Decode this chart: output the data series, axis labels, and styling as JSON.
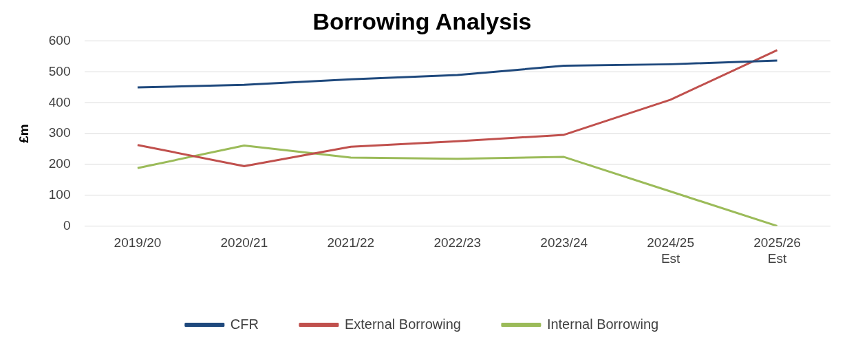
{
  "chart_data": {
    "type": "line",
    "title": "Borrowing Analysis",
    "ylabel": "£m",
    "categories": [
      "2019/20",
      "2020/21",
      "2021/22",
      "2022/23",
      "2023/24",
      "2024/25\nEst",
      "2025/26\nEst"
    ],
    "series": [
      {
        "name": "CFR",
        "color": "#1f497d",
        "values": [
          450,
          458,
          476,
          490,
          520,
          525,
          537
        ]
      },
      {
        "name": "External Borrowing",
        "color": "#c0504d",
        "values": [
          263,
          194,
          257,
          275,
          296,
          410,
          571
        ]
      },
      {
        "name": "Internal Borrowing",
        "color": "#9bbb59",
        "values": [
          188,
          261,
          222,
          218,
          224,
          112,
          0
        ]
      }
    ],
    "ylim": [
      0,
      600
    ],
    "yticks": [
      0,
      100,
      200,
      300,
      400,
      500,
      600
    ],
    "grid": "y",
    "legend": "bottom",
    "marker": "none",
    "line_style": "solid"
  }
}
